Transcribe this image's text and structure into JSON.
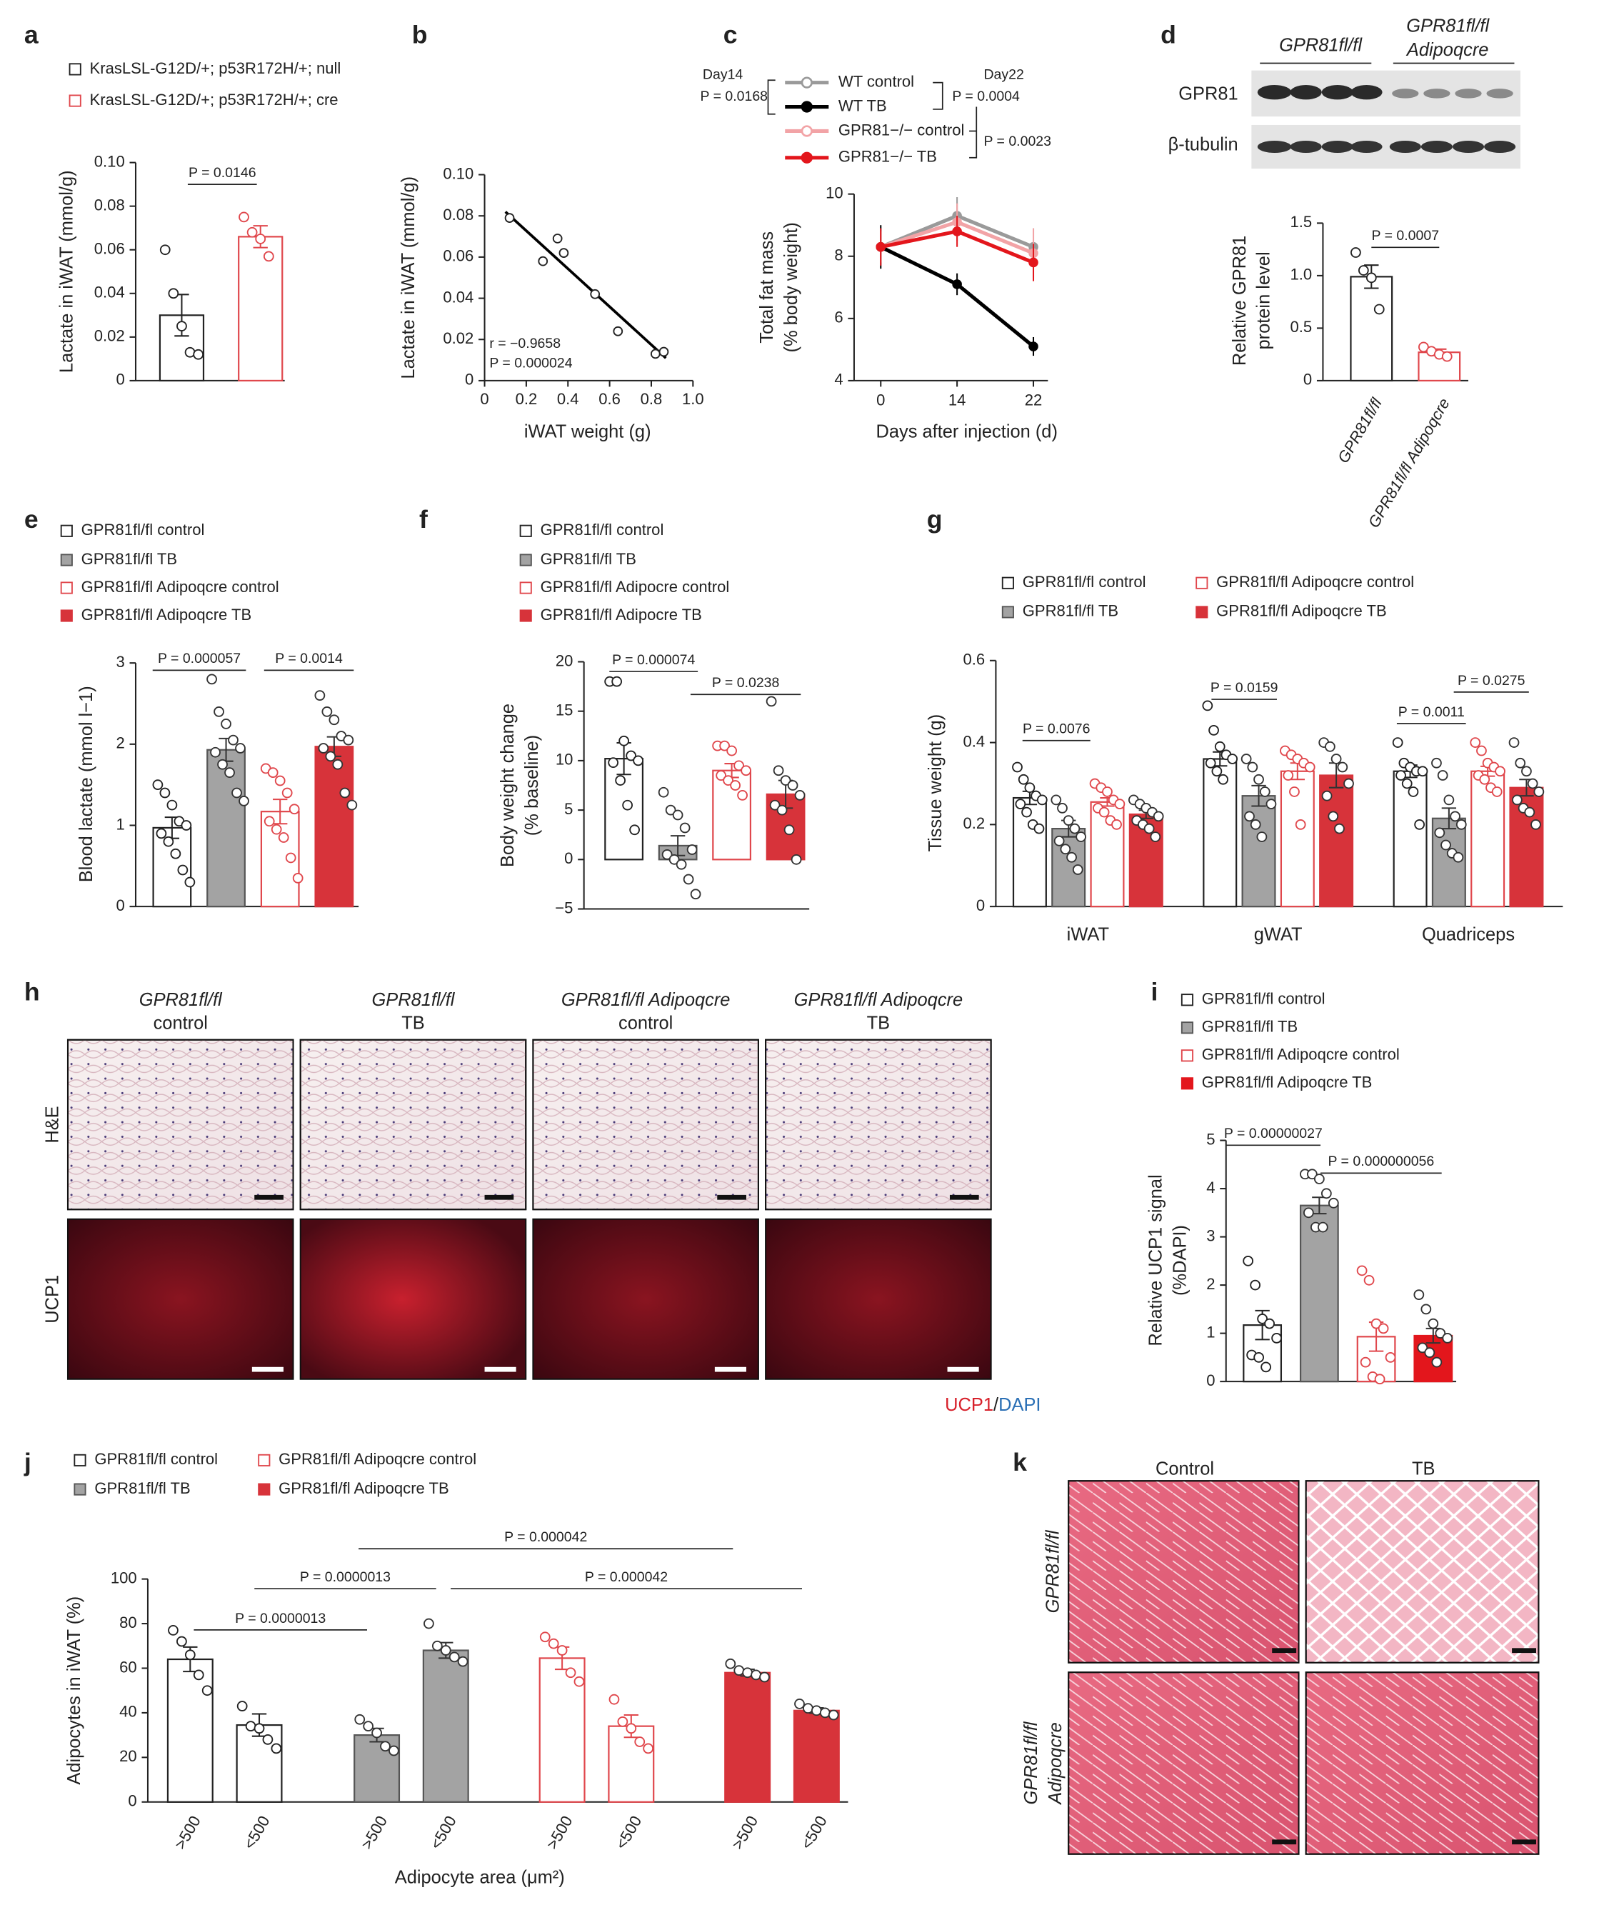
{
  "labels": {
    "panels": [
      "a",
      "b",
      "c",
      "d",
      "e",
      "f",
      "g",
      "h",
      "i",
      "j",
      "k"
    ],
    "d_blot": {
      "groups": [
        [
          "GPR81fl/fl"
        ],
        [
          "GPR81fl/fl",
          "Adipoqcre"
        ]
      ],
      "rows": [
        "GPR81",
        "β-tubulin"
      ]
    },
    "h": {
      "columns": [
        [
          "GPR81fl/fl",
          "control"
        ],
        [
          "GPR81fl/fl",
          "TB"
        ],
        [
          "GPR81fl/fl Adipoqcre",
          "control"
        ],
        [
          "GPR81fl/fl Adipoqcre",
          "TB"
        ]
      ],
      "rows": [
        "H&E",
        "UCP1"
      ],
      "stain": [
        "UCP1",
        "/",
        "DAPI"
      ]
    },
    "k": {
      "columns": [
        "Control",
        "TB"
      ],
      "rows": [
        [
          "GPR81fl/fl"
        ],
        [
          "GPR81fl/fl",
          "Adipoqcre"
        ]
      ]
    }
  },
  "chart_data": [
    {
      "type": "bar",
      "categories": [
        null
      ],
      "ylabel": "Lactate in iWAT (mmol/g)",
      "ylim": [
        0,
        0.1
      ],
      "yticks": [
        0,
        0.02,
        0.04,
        0.06,
        0.08,
        {
          "value": 0.1,
          "label": "0.10"
        }
      ],
      "series": [
        {
          "name": "KrasLSL-G12D/+; p53R172H/+; null",
          "color": "#222222",
          "filled": false,
          "values": [
            0.03
          ],
          "errors": [
            0.0095
          ],
          "points": [
            [
              0.06,
              0.04,
              0.025,
              0.013,
              0.012
            ]
          ]
        },
        {
          "name": "KrasLSL-G12D/+; p53R172H/+; cre",
          "color": "#e0474c",
          "filled": false,
          "values": [
            0.066
          ],
          "errors": [
            0.005
          ],
          "points": [
            [
              0.075,
              0.068,
              0.065,
              0.057
            ]
          ]
        }
      ],
      "annotations": [
        "P = 0.0146"
      ]
    },
    {
      "type": "scatter",
      "xlabel": "iWAT weight (g)",
      "ylabel": "Lactate in iWAT (mmol/g)",
      "xlim": [
        0,
        1
      ],
      "ylim": [
        0,
        0.1
      ],
      "xticks": [
        0,
        0.2,
        0.4,
        0.6,
        0.8,
        {
          "value": 1,
          "label": "1.0"
        }
      ],
      "yticks": [
        0,
        0.02,
        0.04,
        0.06,
        0.08,
        {
          "value": 0.1,
          "label": "0.10"
        }
      ],
      "x": [
        0.12,
        0.28,
        0.35,
        0.38,
        0.53,
        0.64,
        0.82,
        0.86
      ],
      "y": [
        0.079,
        0.058,
        0.069,
        0.062,
        0.042,
        0.024,
        0.013,
        0.014
      ],
      "color": "#222222",
      "trend": {
        "x": [
          0.1,
          0.87
        ],
        "y": [
          0.082,
          0.011
        ]
      },
      "annotations": [
        "r = −0.9658",
        "P = 0.000024"
      ]
    },
    {
      "type": "line",
      "categories": [
        "0",
        "14",
        "22"
      ],
      "xlabel": "Days after injection (d)",
      "ylabel": [
        "Total fat mass",
        "(% body weight)"
      ],
      "ylim": [
        4,
        10
      ],
      "yticks": [
        4,
        6,
        8,
        10
      ],
      "series": [
        {
          "name": "WT control",
          "color": "#9a9a9a",
          "values": [
            8.3,
            9.3,
            8.3
          ],
          "errors": [
            0.5,
            0.6,
            0.6
          ]
        },
        {
          "name": "WT TB",
          "color": "#000000",
          "values": [
            8.3,
            7.1,
            5.1
          ],
          "errors": [
            0.7,
            0.35,
            0.3
          ]
        },
        {
          "name": "GPR81−/− control",
          "color": "#f2a3a6",
          "values": [
            8.3,
            9.1,
            8.1
          ],
          "errors": [
            0.5,
            0.6,
            0.8
          ]
        },
        {
          "name": "GPR81−/− TB",
          "color": "#e3161c",
          "values": [
            8.3,
            8.8,
            7.8
          ],
          "errors": [
            0.6,
            0.5,
            0.6
          ]
        }
      ],
      "annotations": [
        "Day14",
        "P = 0.0168",
        "Day22",
        "P = 0.0004",
        "P = 0.0023"
      ]
    },
    {
      "type": "bar",
      "categories": [
        "GPR81fl/fl",
        "GPR81fl/fl Adipoqcre"
      ],
      "ylabel": [
        "Relative GPR81",
        "protein level"
      ],
      "ylim": [
        0,
        1.5
      ],
      "yticks": [
        0,
        0.5,
        {
          "value": 1,
          "label": "1.0"
        },
        1.5
      ],
      "series": [
        {
          "colors": [
            "#222222",
            "#e0474c"
          ],
          "filled": false,
          "values": [
            0.99,
            0.27
          ],
          "errors": [
            0.11,
            0.03
          ],
          "points": [
            [
              1.22,
              1.05,
              0.98,
              0.68
            ],
            [
              0.32,
              0.28,
              0.25,
              0.23
            ]
          ]
        }
      ],
      "annotations": [
        "P = 0.0007"
      ]
    },
    {
      "type": "bar",
      "categories": [
        null
      ],
      "ylabel": "Blood lactate (mmol l−1)",
      "ylim": [
        0,
        3
      ],
      "yticks": [
        0,
        1,
        2,
        3
      ],
      "series": [
        {
          "name": "GPR81fl/fl control",
          "color": "#222222",
          "filled": false,
          "values": [
            0.97
          ],
          "errors": [
            0.13
          ],
          "points": [
            [
              1.5,
              1.4,
              1.25,
              1.05,
              1.0,
              0.9,
              0.8,
              0.65,
              0.45,
              0.3
            ]
          ]
        },
        {
          "name": "GPR81fl/fl TB",
          "color": "#a3a3a3",
          "edge": "#555555",
          "filled": true,
          "values": [
            1.93
          ],
          "errors": [
            0.14
          ],
          "points": [
            [
              2.8,
              2.4,
              2.25,
              2.05,
              1.95,
              1.9,
              1.75,
              1.65,
              1.4,
              1.3
            ]
          ]
        },
        {
          "name": "GPR81fl/fl Adipoqcre control",
          "color": "#e0474c",
          "filled": false,
          "values": [
            1.17
          ],
          "errors": [
            0.15
          ],
          "points": [
            [
              1.7,
              1.65,
              1.55,
              1.4,
              1.2,
              1.05,
              0.95,
              0.85,
              0.6,
              0.35
            ]
          ]
        },
        {
          "name": "GPR81fl/fl Adipoqcre TB",
          "color": "#d7333a",
          "filled": true,
          "values": [
            1.97
          ],
          "errors": [
            0.12
          ],
          "points": [
            [
              2.6,
              2.4,
              2.3,
              2.1,
              2.05,
              1.95,
              1.85,
              1.75,
              1.4,
              1.25
            ]
          ]
        }
      ],
      "annotations": [
        "P = 0.000057",
        "P = 0.0014"
      ]
    },
    {
      "type": "bar",
      "categories": [
        null
      ],
      "ylabel": [
        "Body weight change",
        "(% baseline)"
      ],
      "ylim": [
        -5,
        20
      ],
      "yticks": [
        {
          "value": -5,
          "label": "−5"
        },
        0,
        5,
        10,
        15,
        20
      ],
      "series": [
        {
          "name": "GPR81fl/fl control",
          "color": "#222222",
          "filled": false,
          "values": [
            10.2
          ],
          "errors": [
            1.6
          ],
          "points": [
            [
              18,
              18,
              12,
              10.5,
              10,
              9.8,
              8,
              5.5,
              3
            ]
          ]
        },
        {
          "name": "GPR81fl/fl TB",
          "color": "#a3a3a3",
          "edge": "#555555",
          "filled": true,
          "values": [
            1.4
          ],
          "errors": [
            1.0
          ],
          "points": [
            [
              6.8,
              5,
              4.5,
              3.2,
              1,
              0.5,
              0,
              -0.5,
              -2,
              -3.5
            ]
          ]
        },
        {
          "name": "GPR81fl/fl Adipocre control",
          "color": "#e0474c",
          "filled": false,
          "values": [
            9.0
          ],
          "errors": [
            0.7
          ],
          "points": [
            [
              11.5,
              11.5,
              11,
              9.5,
              9,
              8.5,
              8,
              7.5,
              6.5
            ]
          ]
        },
        {
          "name": "GPR81fl/fl Adipocre TB",
          "color": "#d7333a",
          "filled": true,
          "values": [
            6.6
          ],
          "errors": [
            1.4
          ],
          "points": [
            [
              16,
              9,
              8,
              7.5,
              6.5,
              5.5,
              5,
              3,
              0
            ]
          ]
        }
      ],
      "annotations": [
        "P = 0.000074",
        "P = 0.0238"
      ]
    },
    {
      "type": "bar",
      "categories": [
        "iWAT",
        "gWAT",
        "Quadriceps"
      ],
      "ylabel": "Tissue weight (g)",
      "ylim": [
        0,
        0.6
      ],
      "yticks": [
        0,
        0.2,
        0.4,
        0.6
      ],
      "series": [
        {
          "name": "GPR81fl/fl control",
          "color": "#222222",
          "filled": false,
          "values": [
            0.265,
            0.36,
            0.33
          ],
          "errors": [
            0.016,
            0.017,
            0.015
          ],
          "points": [
            [
              0.34,
              0.31,
              0.29,
              0.27,
              0.26,
              0.25,
              0.23,
              0.2,
              0.19
            ],
            [
              0.49,
              0.43,
              0.39,
              0.37,
              0.36,
              0.35,
              0.33,
              0.31
            ],
            [
              0.4,
              0.35,
              0.34,
              0.33,
              0.33,
              0.32,
              0.3,
              0.28,
              0.2
            ]
          ]
        },
        {
          "name": "GPR81fl/fl TB",
          "color": "#a3a3a3",
          "edge": "#555555",
          "filled": true,
          "values": [
            0.19,
            0.27,
            0.215
          ],
          "errors": [
            0.02,
            0.025,
            0.025
          ],
          "points": [
            [
              0.26,
              0.24,
              0.21,
              0.19,
              0.17,
              0.16,
              0.14,
              0.12,
              0.09
            ],
            [
              0.36,
              0.34,
              0.31,
              0.28,
              0.25,
              0.22,
              0.2,
              0.17
            ],
            [
              0.35,
              0.32,
              0.26,
              0.22,
              0.2,
              0.18,
              0.15,
              0.13,
              0.12
            ]
          ]
        },
        {
          "name": "GPR81fl/fl Adipoqcre control",
          "color": "#e0474c",
          "filled": false,
          "values": [
            0.255,
            0.33,
            0.33
          ],
          "errors": [
            0.01,
            0.02,
            0.012
          ],
          "points": [
            [
              0.3,
              0.29,
              0.28,
              0.26,
              0.25,
              0.24,
              0.23,
              0.21,
              0.2
            ],
            [
              0.38,
              0.37,
              0.36,
              0.35,
              0.34,
              0.32,
              0.28,
              0.2
            ],
            [
              0.4,
              0.38,
              0.35,
              0.34,
              0.33,
              0.32,
              0.31,
              0.29,
              0.28
            ]
          ]
        },
        {
          "name": "GPR81fl/fl Adipoqcre TB",
          "color": "#d7333a",
          "filled": true,
          "values": [
            0.225,
            0.32,
            0.29
          ],
          "errors": [
            0.01,
            0.03,
            0.02
          ],
          "points": [
            [
              0.26,
              0.25,
              0.24,
              0.23,
              0.22,
              0.21,
              0.2,
              0.19,
              0.17
            ],
            [
              0.4,
              0.39,
              0.36,
              0.34,
              0.3,
              0.27,
              0.22,
              0.19
            ],
            [
              0.4,
              0.35,
              0.33,
              0.3,
              0.28,
              0.26,
              0.24,
              0.23,
              0.2
            ]
          ]
        }
      ],
      "annotations": [
        "P = 0.0076",
        "P = 0.0159",
        "P = 0.0011",
        "P = 0.0275"
      ]
    },
    {
      "type": "bar",
      "categories": [
        null
      ],
      "ylabel": [
        "Relative UCP1 signal",
        "(%DAPI)"
      ],
      "ylim": [
        0,
        5
      ],
      "yticks": [
        0,
        1,
        2,
        3,
        4,
        5
      ],
      "series": [
        {
          "name": "GPR81fl/fl control",
          "color": "#222222",
          "filled": false,
          "values": [
            1.17
          ],
          "errors": [
            0.3
          ],
          "points": [
            [
              2.5,
              2.0,
              1.3,
              1.2,
              0.9,
              0.55,
              0.5,
              0.3
            ]
          ]
        },
        {
          "name": "GPR81fl/fl TB",
          "color": "#a3a3a3",
          "edge": "#555555",
          "filled": true,
          "values": [
            3.65
          ],
          "errors": [
            0.17
          ],
          "points": [
            [
              4.3,
              4.3,
              4.2,
              3.9,
              3.7,
              3.5,
              3.2,
              3.2
            ]
          ]
        },
        {
          "name": "GPR81fl/fl Adipoqcre control",
          "color": "#e0474c",
          "filled": false,
          "values": [
            0.93
          ],
          "errors": [
            0.3
          ],
          "points": [
            [
              2.3,
              2.1,
              1.2,
              1.1,
              0.5,
              0.4,
              0.1,
              0.05
            ]
          ]
        },
        {
          "name": "GPR81fl/fl Adipoqcre TB",
          "color": "#e3161c",
          "filled": true,
          "values": [
            0.95
          ],
          "errors": [
            0.15
          ],
          "points": [
            [
              1.8,
              1.5,
              1.2,
              1.0,
              0.9,
              0.7,
              0.6,
              0.4
            ]
          ]
        }
      ],
      "annotations": [
        "P = 0.00000027",
        "P = 0.000000056"
      ]
    },
    {
      "type": "bar",
      "categories": [
        ">500",
        "<500"
      ],
      "xlabel": "Adipocyte area (μm²)",
      "ylabel": "Adipocytes in iWAT (%)",
      "ylim": [
        0,
        100
      ],
      "yticks": [
        0,
        20,
        40,
        60,
        80,
        100
      ],
      "series": [
        {
          "name": "GPR81fl/fl control",
          "color": "#222222",
          "filled": false,
          "values": [
            64,
            34.5
          ],
          "errors": [
            5.5,
            5
          ],
          "points": [
            [
              77,
              72,
              66,
              57,
              50
            ],
            [
              43,
              34,
              33,
              28,
              24
            ]
          ]
        },
        {
          "name": "GPR81fl/fl TB",
          "color": "#a3a3a3",
          "edge": "#555555",
          "filled": true,
          "values": [
            30,
            68
          ],
          "errors": [
            3,
            3.5
          ],
          "points": [
            [
              37,
              34,
              31,
              25,
              23
            ],
            [
              80,
              70,
              68,
              65,
              63
            ]
          ]
        },
        {
          "name": "GPR81fl/fl Adipoqcre control",
          "color": "#e0474c",
          "filled": false,
          "values": [
            64.5,
            34
          ],
          "errors": [
            5,
            5
          ],
          "points": [
            [
              74,
              71,
              68,
              58,
              54
            ],
            [
              46,
              36,
              33,
              27,
              24
            ]
          ]
        },
        {
          "name": "GPR81fl/fl Adipoqcre TB",
          "color": "#d7333a",
          "filled": true,
          "values": [
            58,
            41
          ],
          "errors": [
            1.5,
            1.2
          ],
          "points": [
            [
              62,
              59,
              58,
              57,
              56
            ],
            [
              44,
              42,
              41,
              40,
              39
            ]
          ]
        }
      ],
      "annotations": [
        "P = 0.0000013",
        "P = 0.0000013",
        "P = 0.000042",
        "P = 0.000042"
      ]
    }
  ]
}
